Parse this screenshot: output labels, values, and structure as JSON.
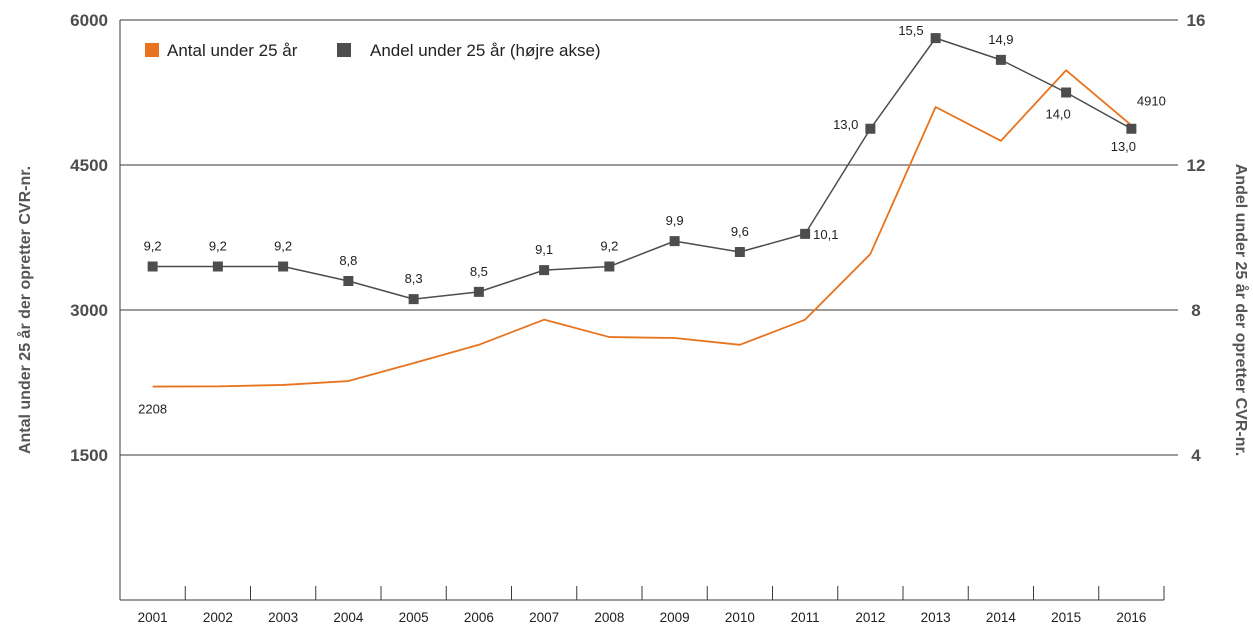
{
  "chart_data": {
    "type": "line",
    "categories": [
      "2001",
      "2002",
      "2003",
      "2004",
      "2005",
      "2006",
      "2007",
      "2008",
      "2009",
      "2010",
      "2011",
      "2012",
      "2013",
      "2014",
      "2015",
      "2016"
    ],
    "series": [
      {
        "name": "Antal under 25 år",
        "axis": "left",
        "color": "#e8731e",
        "values": [
          2208,
          2210,
          2225,
          2265,
          2450,
          2640,
          2900,
          2720,
          2710,
          2640,
          2900,
          3580,
          5100,
          4750,
          5480,
          4910
        ],
        "labels": {
          "0": "2208",
          "15": "4910"
        }
      },
      {
        "name": "Andel under 25 år (højre akse)",
        "axis": "right",
        "color": "#4d4d4d",
        "values": [
          9.2,
          9.2,
          9.2,
          8.8,
          8.3,
          8.5,
          9.1,
          9.2,
          9.9,
          9.6,
          10.1,
          13.0,
          15.5,
          14.9,
          14.0,
          13.0
        ],
        "labels": [
          "9,2",
          "9,2",
          "9,2",
          "8,8",
          "8,3",
          "8,5",
          "9,1",
          "9,2",
          "9,9",
          "9,6",
          "10,1",
          "13,0",
          "15,5",
          "14,9",
          "14,0",
          "13,0"
        ]
      }
    ],
    "y_left": {
      "label": "Antal under 25 år der opretter CVR-nr.",
      "ylim": [
        0,
        6000
      ],
      "ticks": [
        "1500",
        "3000",
        "4500",
        "6000"
      ]
    },
    "y_right": {
      "label": "Andel under 25 år der opretter CVR-nr.",
      "ylim": [
        0,
        16
      ],
      "ticks": [
        "4",
        "8",
        "12",
        "16"
      ]
    },
    "grid": true,
    "legend": "top-left"
  }
}
